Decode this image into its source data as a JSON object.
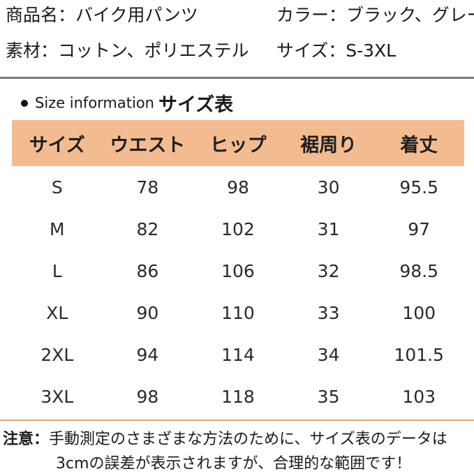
{
  "info": {
    "product_name": "商品名：バイク用パンツ",
    "color": "カラー：ブラック、グレー",
    "material": "素材：コットン、ポリエステル",
    "size_range": "サイズ：S-3XL"
  },
  "section": {
    "title_en": "Size information",
    "title_jp": "サイズ表"
  },
  "table": {
    "headers": [
      "サイズ",
      "ウエスト",
      "ヒップ",
      "裾周り",
      "着丈"
    ],
    "rows": [
      [
        "S",
        "78",
        "98",
        "30",
        "95.5"
      ],
      [
        "M",
        "82",
        "102",
        "31",
        "97"
      ],
      [
        "L",
        "86",
        "106",
        "32",
        "98.5"
      ],
      [
        "XL",
        "90",
        "110",
        "33",
        "100"
      ],
      [
        "2XL",
        "94",
        "114",
        "34",
        "101.5"
      ],
      [
        "3XL",
        "98",
        "118",
        "35",
        "103"
      ]
    ]
  },
  "note": {
    "label": "注意：",
    "line1": "手動測定のさまざまな方法のために、サイズ表のデータは",
    "line2": "3cmの誤差が表示されますが、合理的な範囲です！"
  },
  "colors": {
    "header_bg": "#f3bc90",
    "separator": "#7a7a7a"
  }
}
